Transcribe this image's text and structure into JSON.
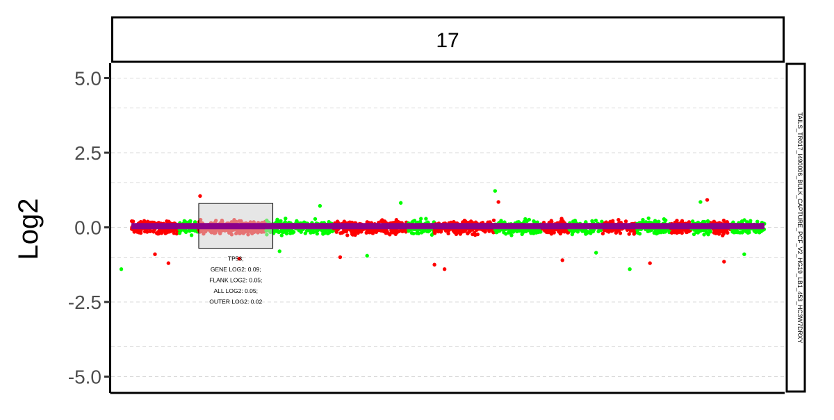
{
  "chart_data": {
    "type": "scatter",
    "facet_label": "17",
    "strip_label": "TAILS_TR017_I490006_BULK_CAPTURE_PCF_V2_HG19_LB1_453_HC3W7DRXY",
    "ylabel": "Log2",
    "ylim": [
      -5.5,
      5.2
    ],
    "yticks": [
      5.0,
      2.5,
      0.0,
      -2.5,
      -5.0
    ],
    "ytick_labels": [
      "5.0",
      "2.5",
      "0.0",
      "-2.5",
      "-5.0"
    ],
    "minor_gridlines": [
      4.0,
      1.5,
      -1.0,
      -4.0
    ],
    "grid": "dashed horizontal",
    "xlim": [
      0,
      100
    ],
    "segment_color_a": "#ff0000",
    "segment_color_b": "#00ff00",
    "segment_line": {
      "y": 0.04,
      "x_start": 3,
      "x_end": 97,
      "color": "#8b008b"
    },
    "segments": [
      {
        "x_start": 3,
        "x_end": 10,
        "color": "a"
      },
      {
        "x_start": 10,
        "x_end": 13,
        "color": "b"
      },
      {
        "x_start": 13,
        "x_end": 23,
        "color": "a"
      },
      {
        "x_start": 23,
        "x_end": 33,
        "color": "b"
      },
      {
        "x_start": 33,
        "x_end": 44,
        "color": "a"
      },
      {
        "x_start": 44,
        "x_end": 48,
        "color": "b"
      },
      {
        "x_start": 48,
        "x_end": 57,
        "color": "a"
      },
      {
        "x_start": 57,
        "x_end": 64,
        "color": "b"
      },
      {
        "x_start": 64,
        "x_end": 68,
        "color": "a"
      },
      {
        "x_start": 68,
        "x_end": 73,
        "color": "b"
      },
      {
        "x_start": 73,
        "x_end": 78,
        "color": "a"
      },
      {
        "x_start": 78,
        "x_end": 83,
        "color": "b"
      },
      {
        "x_start": 83,
        "x_end": 86,
        "color": "a"
      },
      {
        "x_start": 86,
        "x_end": 89,
        "color": "b"
      },
      {
        "x_start": 89,
        "x_end": 92,
        "color": "a"
      },
      {
        "x_start": 92,
        "x_end": 97,
        "color": "b"
      }
    ],
    "outliers": [
      {
        "x": 1.5,
        "y": -1.4,
        "c": "b"
      },
      {
        "x": 6.5,
        "y": -0.9,
        "c": "a"
      },
      {
        "x": 8.5,
        "y": -1.2,
        "c": "a"
      },
      {
        "x": 13.2,
        "y": 1.05,
        "c": "a"
      },
      {
        "x": 19,
        "y": -1.05,
        "c": "a"
      },
      {
        "x": 25,
        "y": -0.8,
        "c": "b"
      },
      {
        "x": 31,
        "y": 0.72,
        "c": "b"
      },
      {
        "x": 34,
        "y": -1.0,
        "c": "a"
      },
      {
        "x": 38,
        "y": -0.95,
        "c": "b"
      },
      {
        "x": 43,
        "y": 0.82,
        "c": "b"
      },
      {
        "x": 48,
        "y": -1.25,
        "c": "a"
      },
      {
        "x": 49.5,
        "y": -1.4,
        "c": "a"
      },
      {
        "x": 57,
        "y": 1.22,
        "c": "b"
      },
      {
        "x": 57.5,
        "y": 0.85,
        "c": "a"
      },
      {
        "x": 67,
        "y": -1.1,
        "c": "a"
      },
      {
        "x": 72,
        "y": -0.85,
        "c": "b"
      },
      {
        "x": 77,
        "y": -1.4,
        "c": "b"
      },
      {
        "x": 80,
        "y": -1.2,
        "c": "a"
      },
      {
        "x": 87.5,
        "y": 0.85,
        "c": "b"
      },
      {
        "x": 88.5,
        "y": 0.92,
        "c": "a"
      },
      {
        "x": 91,
        "y": -1.15,
        "c": "a"
      },
      {
        "x": 94,
        "y": -0.9,
        "c": "b"
      }
    ],
    "gene_box": {
      "x_start": 13,
      "x_end": 24,
      "y_top": 0.8,
      "y_bottom": -0.7,
      "annotation": [
        "TP53;",
        "GENE LOG2: 0.09;",
        "FLANK LOG2: 0.05;",
        "ALL LOG2: 0.05;",
        "OUTER LOG2: 0.02"
      ]
    }
  }
}
